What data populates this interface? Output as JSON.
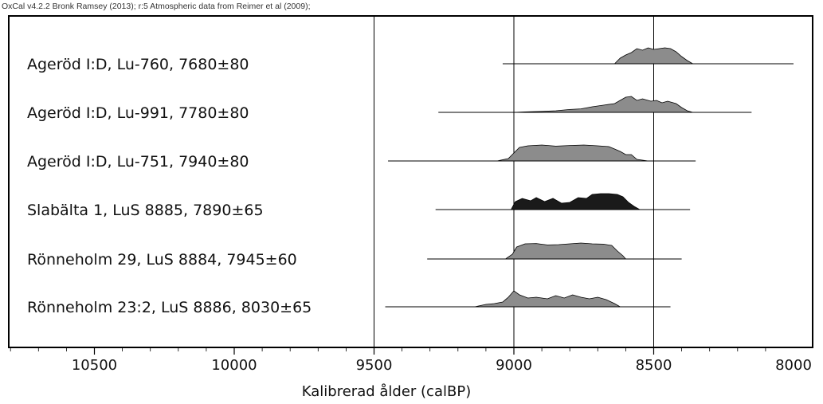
{
  "chart_data": {
    "type": "area",
    "credit": "OxCal v4.2.2 Bronk Ramsey (2013); r:5 Atmospheric data from Reimer et al (2009);",
    "xlabel": "Kalibrerad ålder (calBP)",
    "xlim": [
      10850,
      8000
    ],
    "x_ticks_major": [
      10500,
      10000,
      9500,
      9000,
      8500,
      8000
    ],
    "x_tick_labels": [
      "10500",
      "10000",
      "9500",
      "9000",
      "8500",
      "8000"
    ],
    "x_ticks_minor_step": 100,
    "reference_lines": [
      9500,
      9000,
      8500
    ],
    "grid": false,
    "legend": "none",
    "series": [
      {
        "name": "Ageröd I:D, Lu-760, 7680±80",
        "range": [
          9040,
          8000
        ],
        "color": "#8c8c8c",
        "profile": [
          [
            8640,
            0
          ],
          [
            8620,
            0.35
          ],
          [
            8600,
            0.55
          ],
          [
            8580,
            0.7
          ],
          [
            8560,
            0.95
          ],
          [
            8540,
            0.85
          ],
          [
            8520,
            1.0
          ],
          [
            8500,
            0.9
          ],
          [
            8480,
            0.95
          ],
          [
            8460,
            1.0
          ],
          [
            8440,
            0.95
          ],
          [
            8420,
            0.75
          ],
          [
            8400,
            0.45
          ],
          [
            8380,
            0.2
          ],
          [
            8360,
            0
          ]
        ]
      },
      {
        "name": "Ageröd I:D, Lu-991, 7780±80",
        "range": [
          9270,
          8150
        ],
        "color": "#8c8c8c",
        "profile": [
          [
            9000,
            0
          ],
          [
            8960,
            0.03
          ],
          [
            8900,
            0.06
          ],
          [
            8850,
            0.1
          ],
          [
            8800,
            0.18
          ],
          [
            8760,
            0.22
          ],
          [
            8720,
            0.35
          ],
          [
            8680,
            0.45
          ],
          [
            8640,
            0.55
          ],
          [
            8620,
            0.75
          ],
          [
            8600,
            0.95
          ],
          [
            8580,
            1.0
          ],
          [
            8560,
            0.75
          ],
          [
            8540,
            0.85
          ],
          [
            8510,
            0.7
          ],
          [
            8490,
            0.75
          ],
          [
            8470,
            0.6
          ],
          [
            8450,
            0.7
          ],
          [
            8420,
            0.55
          ],
          [
            8400,
            0.3
          ],
          [
            8380,
            0.1
          ],
          [
            8360,
            0
          ]
        ]
      },
      {
        "name": "Ageröd I:D, Lu-751, 7940±80",
        "range": [
          9450,
          8350
        ],
        "color": "#8c8c8c",
        "profile": [
          [
            9060,
            0
          ],
          [
            9020,
            0.15
          ],
          [
            9000,
            0.5
          ],
          [
            8980,
            0.85
          ],
          [
            8950,
            0.95
          ],
          [
            8900,
            1.0
          ],
          [
            8850,
            0.93
          ],
          [
            8800,
            0.97
          ],
          [
            8750,
            1.0
          ],
          [
            8700,
            0.95
          ],
          [
            8660,
            0.9
          ],
          [
            8640,
            0.75
          ],
          [
            8620,
            0.6
          ],
          [
            8600,
            0.4
          ],
          [
            8580,
            0.4
          ],
          [
            8560,
            0.1
          ],
          [
            8520,
            0
          ]
        ]
      },
      {
        "name": "Slabälta 1, LuS 8885, 7890±65",
        "range": [
          9280,
          8370
        ],
        "color": "#1a1a1a",
        "profile": [
          [
            9010,
            0
          ],
          [
            8995,
            0.5
          ],
          [
            8970,
            0.7
          ],
          [
            8940,
            0.55
          ],
          [
            8920,
            0.75
          ],
          [
            8890,
            0.5
          ],
          [
            8860,
            0.7
          ],
          [
            8830,
            0.4
          ],
          [
            8800,
            0.45
          ],
          [
            8770,
            0.75
          ],
          [
            8740,
            0.7
          ],
          [
            8720,
            0.95
          ],
          [
            8690,
            1.0
          ],
          [
            8660,
            1.0
          ],
          [
            8630,
            0.95
          ],
          [
            8610,
            0.8
          ],
          [
            8590,
            0.45
          ],
          [
            8570,
            0.2
          ],
          [
            8550,
            0
          ]
        ]
      },
      {
        "name": "Rönneholm 29, LuS 8884, 7945±60",
        "range": [
          9310,
          8400
        ],
        "color": "#8c8c8c",
        "profile": [
          [
            9030,
            0
          ],
          [
            9005,
            0.3
          ],
          [
            8990,
            0.75
          ],
          [
            8960,
            0.95
          ],
          [
            8920,
            0.97
          ],
          [
            8880,
            0.88
          ],
          [
            8840,
            0.9
          ],
          [
            8800,
            0.95
          ],
          [
            8760,
            1.0
          ],
          [
            8720,
            0.95
          ],
          [
            8680,
            0.93
          ],
          [
            8650,
            0.85
          ],
          [
            8630,
            0.5
          ],
          [
            8610,
            0.2
          ],
          [
            8600,
            0
          ]
        ]
      },
      {
        "name": "Rönneholm 23:2, LuS 8886, 8030±65",
        "range": [
          9460,
          8440
        ],
        "color": "#8c8c8c",
        "profile": [
          [
            9140,
            0
          ],
          [
            9100,
            0.15
          ],
          [
            9070,
            0.2
          ],
          [
            9040,
            0.3
          ],
          [
            9020,
            0.6
          ],
          [
            9000,
            1.0
          ],
          [
            8980,
            0.75
          ],
          [
            8950,
            0.55
          ],
          [
            8920,
            0.6
          ],
          [
            8880,
            0.5
          ],
          [
            8850,
            0.7
          ],
          [
            8820,
            0.55
          ],
          [
            8790,
            0.75
          ],
          [
            8760,
            0.6
          ],
          [
            8730,
            0.5
          ],
          [
            8700,
            0.6
          ],
          [
            8670,
            0.45
          ],
          [
            8640,
            0.2
          ],
          [
            8620,
            0
          ]
        ]
      }
    ]
  }
}
